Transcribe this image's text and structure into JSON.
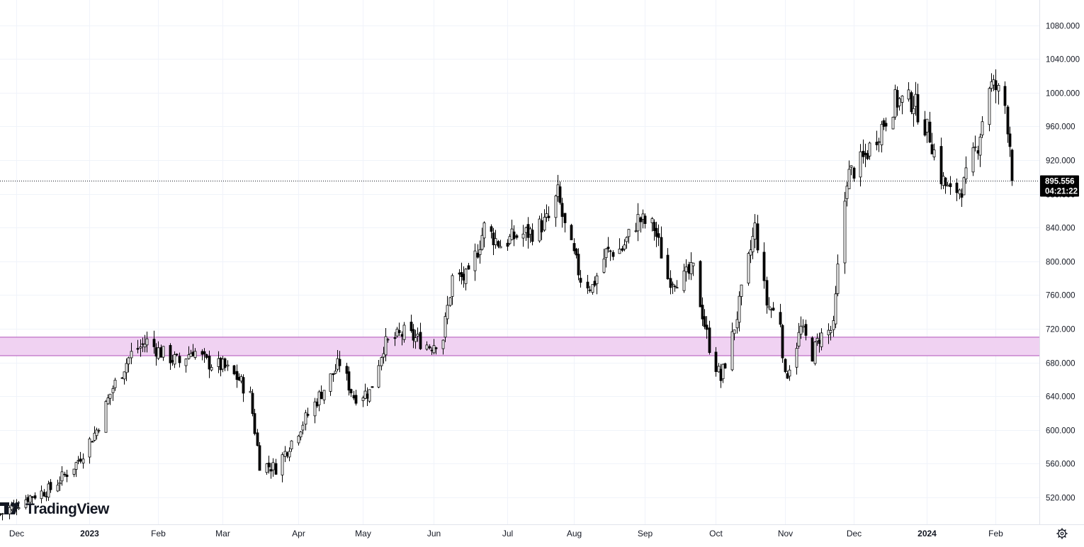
{
  "chart_data": {
    "type": "candlestick",
    "period": "daily",
    "ylim": [
      488,
      1110
    ],
    "x_range": [
      "2022-11-24",
      "2024-02-20"
    ],
    "y_ticks": [
      "1080.000",
      "1040.000",
      "1000.000",
      "960.000",
      "920.000",
      "880.000",
      "840.000",
      "800.000",
      "760.000",
      "720.000",
      "680.000",
      "640.000",
      "600.000",
      "560.000",
      "520.000"
    ],
    "y_tick_values": [
      1080,
      1040,
      1000,
      960,
      920,
      880,
      840,
      800,
      760,
      720,
      680,
      640,
      600,
      560,
      520
    ],
    "x_ticks": [
      {
        "label": "Dec",
        "date": "2022-12-01",
        "bold": false
      },
      {
        "label": "2023",
        "date": "2023-01-02",
        "bold": true
      },
      {
        "label": "Feb",
        "date": "2023-02-01",
        "bold": false
      },
      {
        "label": "Mar",
        "date": "2023-03-01",
        "bold": false
      },
      {
        "label": "Apr",
        "date": "2023-04-03",
        "bold": false
      },
      {
        "label": "May",
        "date": "2023-05-01",
        "bold": false
      },
      {
        "label": "Jun",
        "date": "2023-06-01",
        "bold": false
      },
      {
        "label": "Jul",
        "date": "2023-07-03",
        "bold": false
      },
      {
        "label": "Aug",
        "date": "2023-08-01",
        "bold": false
      },
      {
        "label": "Sep",
        "date": "2023-09-01",
        "bold": false
      },
      {
        "label": "Oct",
        "date": "2023-10-02",
        "bold": false
      },
      {
        "label": "Nov",
        "date": "2023-11-01",
        "bold": false
      },
      {
        "label": "Dec",
        "date": "2023-12-01",
        "bold": false
      },
      {
        "label": "2024",
        "date": "2024-01-02",
        "bold": true
      },
      {
        "label": "Feb",
        "date": "2024-02-01",
        "bold": false
      }
    ],
    "anchors": [
      [
        "2022-11-24",
        500
      ],
      [
        "2022-12-06",
        520
      ],
      [
        "2022-12-16",
        530
      ],
      [
        "2022-12-27",
        560
      ],
      [
        "2023-01-05",
        600
      ],
      [
        "2023-01-12",
        650
      ],
      [
        "2023-01-20",
        690
      ],
      [
        "2023-01-27",
        705
      ],
      [
        "2023-02-03",
        690
      ],
      [
        "2023-02-10",
        680
      ],
      [
        "2023-02-16",
        695
      ],
      [
        "2023-02-22",
        680
      ],
      [
        "2023-03-01",
        675
      ],
      [
        "2023-03-08",
        660
      ],
      [
        "2023-03-13",
        640
      ],
      [
        "2023-03-17",
        560
      ],
      [
        "2023-03-24",
        555
      ],
      [
        "2023-04-03",
        600
      ],
      [
        "2023-04-12",
        640
      ],
      [
        "2023-04-21",
        680
      ],
      [
        "2023-04-27",
        640
      ],
      [
        "2023-05-04",
        645
      ],
      [
        "2023-05-10",
        700
      ],
      [
        "2023-05-19",
        715
      ],
      [
        "2023-05-30",
        700
      ],
      [
        "2023-06-05",
        710
      ],
      [
        "2023-06-09",
        780
      ],
      [
        "2023-06-16",
        780
      ],
      [
        "2023-06-23",
        840
      ],
      [
        "2023-06-30",
        820
      ],
      [
        "2023-07-07",
        830
      ],
      [
        "2023-07-14",
        835
      ],
      [
        "2023-07-21",
        850
      ],
      [
        "2023-07-25",
        880
      ],
      [
        "2023-07-28",
        840
      ],
      [
        "2023-08-04",
        780
      ],
      [
        "2023-08-09",
        770
      ],
      [
        "2023-08-15",
        810
      ],
      [
        "2023-08-22",
        815
      ],
      [
        "2023-08-29",
        850
      ],
      [
        "2023-09-05",
        840
      ],
      [
        "2023-09-11",
        780
      ],
      [
        "2023-09-18",
        780
      ],
      [
        "2023-09-22",
        790
      ],
      [
        "2023-09-29",
        700
      ],
      [
        "2023-10-04",
        660
      ],
      [
        "2023-10-09",
        710
      ],
      [
        "2023-10-16",
        800
      ],
      [
        "2023-10-19",
        840
      ],
      [
        "2023-10-24",
        750
      ],
      [
        "2023-10-30",
        730
      ],
      [
        "2023-11-01",
        660
      ],
      [
        "2023-11-08",
        720
      ],
      [
        "2023-11-13",
        690
      ],
      [
        "2023-11-16",
        710
      ],
      [
        "2023-11-22",
        720
      ],
      [
        "2023-11-24",
        790
      ],
      [
        "2023-11-28",
        900
      ],
      [
        "2023-12-05",
        920
      ],
      [
        "2023-12-13",
        960
      ],
      [
        "2023-12-19",
        990
      ],
      [
        "2023-12-27",
        990
      ],
      [
        "2024-01-03",
        950
      ],
      [
        "2024-01-08",
        900
      ],
      [
        "2024-01-12",
        880
      ],
      [
        "2024-01-18",
        890
      ],
      [
        "2024-01-24",
        940
      ],
      [
        "2024-01-29",
        1010
      ],
      [
        "2024-02-01",
        1005
      ],
      [
        "2024-02-05",
        985
      ],
      [
        "2024-02-07",
        940
      ],
      [
        "2024-02-08",
        896
      ]
    ],
    "last_price": "895.556",
    "countdown": "04:21:22",
    "zone": {
      "low": 688,
      "high": 710
    },
    "colors": {
      "candle_up_fill": "#ffffff",
      "candle_down_fill": "#000000",
      "candle_border": "#000000",
      "zone_fill": "#f0d2f2",
      "zone_border": "#b152b9",
      "grid": "#f0f3fa",
      "price_tag": "#000000"
    }
  },
  "branding": {
    "logo_text": "TradingView"
  },
  "controls": {
    "settings_icon": "gear-icon"
  }
}
